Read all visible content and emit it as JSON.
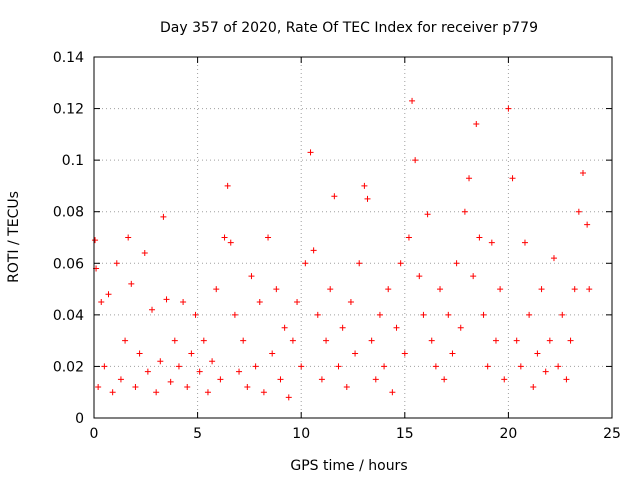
{
  "chart_data": {
    "type": "scatter",
    "title": "Day 357 of 2020, Rate Of TEC Index for receiver p779",
    "xlabel": "GPS time / hours",
    "ylabel": "ROTI / TECUs",
    "xlim": [
      0,
      25
    ],
    "ylim": [
      0,
      0.14
    ],
    "x_ticks": [
      0,
      5,
      10,
      15,
      20,
      25
    ],
    "x_tick_labels": [
      "0",
      "5",
      "10",
      "15",
      "20",
      "25"
    ],
    "y_ticks": [
      0,
      0.02,
      0.04,
      0.06,
      0.08,
      0.1,
      0.12,
      0.14
    ],
    "y_tick_labels": [
      "0",
      "0.02",
      "0.04",
      "0.06",
      "0.08",
      "0.1",
      "0.12",
      "0.14"
    ],
    "grid": true,
    "marker": "plus",
    "series": [
      {
        "color": "#ff0000",
        "x": [
          0.05,
          0.1,
          0.2,
          0.35,
          0.5,
          0.7,
          0.9,
          1.1,
          1.3,
          1.5,
          1.65,
          1.8,
          2.0,
          2.2,
          2.45,
          2.6,
          2.8,
          3.0,
          3.2,
          3.35,
          3.5,
          3.7,
          3.9,
          4.1,
          4.3,
          4.5,
          4.7,
          4.9,
          5.1,
          5.3,
          5.5,
          5.7,
          5.9,
          6.1,
          6.3,
          6.45,
          6.6,
          6.8,
          7.0,
          7.2,
          7.4,
          7.6,
          7.8,
          8.0,
          8.2,
          8.4,
          8.6,
          8.8,
          9.0,
          9.2,
          9.4,
          9.6,
          9.8,
          10.0,
          10.2,
          10.45,
          10.6,
          10.8,
          11.0,
          11.2,
          11.4,
          11.6,
          11.8,
          12.0,
          12.2,
          12.4,
          12.6,
          12.8,
          13.05,
          13.2,
          13.4,
          13.6,
          13.8,
          14.0,
          14.2,
          14.4,
          14.6,
          14.8,
          15.0,
          15.2,
          15.35,
          15.5,
          15.7,
          15.9,
          16.1,
          16.3,
          16.5,
          16.7,
          16.9,
          17.1,
          17.3,
          17.5,
          17.7,
          17.9,
          18.1,
          18.3,
          18.45,
          18.6,
          18.8,
          19.0,
          19.2,
          19.4,
          19.6,
          19.8,
          20.0,
          20.2,
          20.4,
          20.6,
          20.8,
          21.0,
          21.2,
          21.4,
          21.6,
          21.8,
          22.0,
          22.2,
          22.4,
          22.6,
          22.8,
          23.0,
          23.2,
          23.4,
          23.6,
          23.8,
          23.9
        ],
        "y": [
          0.069,
          0.058,
          0.012,
          0.045,
          0.02,
          0.048,
          0.01,
          0.06,
          0.015,
          0.03,
          0.07,
          0.052,
          0.012,
          0.025,
          0.064,
          0.018,
          0.042,
          0.01,
          0.022,
          0.078,
          0.046,
          0.014,
          0.03,
          0.02,
          0.045,
          0.012,
          0.025,
          0.04,
          0.018,
          0.03,
          0.01,
          0.022,
          0.05,
          0.015,
          0.07,
          0.09,
          0.068,
          0.04,
          0.018,
          0.03,
          0.012,
          0.055,
          0.02,
          0.045,
          0.01,
          0.07,
          0.025,
          0.05,
          0.015,
          0.035,
          0.008,
          0.03,
          0.045,
          0.02,
          0.06,
          0.103,
          0.065,
          0.04,
          0.015,
          0.03,
          0.05,
          0.086,
          0.02,
          0.035,
          0.012,
          0.045,
          0.025,
          0.06,
          0.09,
          0.085,
          0.03,
          0.015,
          0.04,
          0.02,
          0.05,
          0.01,
          0.035,
          0.06,
          0.025,
          0.07,
          0.123,
          0.1,
          0.055,
          0.04,
          0.079,
          0.03,
          0.02,
          0.05,
          0.015,
          0.04,
          0.025,
          0.06,
          0.035,
          0.08,
          0.093,
          0.055,
          0.114,
          0.07,
          0.04,
          0.02,
          0.068,
          0.03,
          0.05,
          0.015,
          0.12,
          0.093,
          0.03,
          0.02,
          0.068,
          0.04,
          0.012,
          0.025,
          0.05,
          0.018,
          0.03,
          0.062,
          0.02,
          0.04,
          0.015,
          0.03,
          0.05,
          0.08,
          0.095,
          0.075,
          0.05
        ]
      }
    ]
  }
}
